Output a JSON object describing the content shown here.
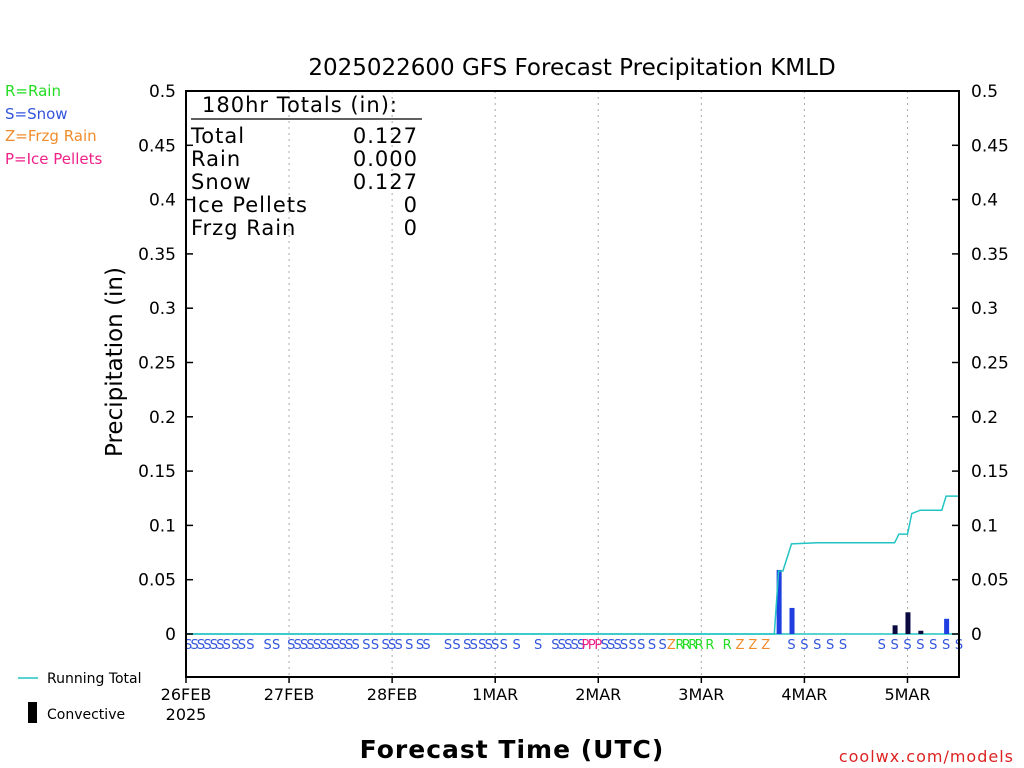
{
  "page": {
    "footer": "coolwx.com/models"
  },
  "legend": {
    "types": [
      {
        "label": "R=Rain",
        "color": "#22dd22"
      },
      {
        "label": "S=Snow",
        "color": "#3355dd"
      },
      {
        "label": "Z=Frzg Rain",
        "color": "#f08c2c"
      },
      {
        "label": "P=Ice Pellets",
        "color": "#ee2288"
      }
    ],
    "running_total": "Running Total",
    "convective": "Convective"
  },
  "totals": {
    "heading": "180hr Totals (in):",
    "rows": [
      {
        "label": "Total",
        "value": "0.127"
      },
      {
        "label": "Rain",
        "value": "0.000"
      },
      {
        "label": "Snow",
        "value": "0.127"
      },
      {
        "label": "Ice Pellets",
        "value": "0"
      },
      {
        "label": "Frzg Rain",
        "value": "0"
      }
    ]
  },
  "colors": {
    "running_total": "#22c4c4",
    "snow_bar": "#1f3fe0",
    "convective_bar": "#0a0a40",
    "grid": "#aaaaaa"
  },
  "chart_data": {
    "type": "bar",
    "title": "2025022600 GFS Forecast Precipitation KMLD",
    "xlabel": "Forecast Time (UTC)",
    "ylabel": "Precipitation (in)",
    "ylim": [
      0,
      0.5
    ],
    "xlim_hours": [
      0,
      180
    ],
    "y_ticks": [
      "0",
      "0.05",
      "0.1",
      "0.15",
      "0.2",
      "0.25",
      "0.3",
      "0.35",
      "0.4",
      "0.45",
      "0.5"
    ],
    "x_ticks": [
      {
        "hour": 0,
        "label": "26FEB",
        "sublabel": "2025"
      },
      {
        "hour": 24,
        "label": "27FEB"
      },
      {
        "hour": 48,
        "label": "28FEB"
      },
      {
        "hour": 72,
        "label": "1MAR"
      },
      {
        "hour": 96,
        "label": "2MAR"
      },
      {
        "hour": 120,
        "label": "3MAR"
      },
      {
        "hour": 144,
        "label": "4MAR"
      },
      {
        "hour": 168,
        "label": "5MAR"
      }
    ],
    "grid": true,
    "series": [
      {
        "name": "Running Total",
        "type": "line",
        "points": [
          [
            0,
            0
          ],
          [
            137,
            0
          ],
          [
            138,
            0.058
          ],
          [
            139,
            0.058
          ],
          [
            141,
            0.083
          ],
          [
            147,
            0.084
          ],
          [
            165,
            0.084
          ],
          [
            166,
            0.092
          ],
          [
            168,
            0.092
          ],
          [
            169,
            0.111
          ],
          [
            171,
            0.114
          ],
          [
            176,
            0.114
          ],
          [
            177,
            0.127
          ],
          [
            180,
            0.127
          ]
        ]
      },
      {
        "name": "Precipitation",
        "type": "bar",
        "bars": [
          {
            "hour": 138,
            "value": 0.059
          },
          {
            "hour": 141,
            "value": 0.024
          },
          {
            "hour": 177,
            "value": 0.014
          }
        ]
      },
      {
        "name": "Convective",
        "type": "bar",
        "bars": [
          {
            "hour": 165,
            "value": 0.008
          },
          {
            "hour": 168,
            "value": 0.02
          },
          {
            "hour": 171,
            "value": 0.003
          }
        ]
      }
    ],
    "type_markers": [
      {
        "hour": 0.5,
        "t": "S"
      },
      {
        "hour": 2,
        "t": "S"
      },
      {
        "hour": 3.5,
        "t": "S"
      },
      {
        "hour": 5,
        "t": "S"
      },
      {
        "hour": 6.5,
        "t": "S"
      },
      {
        "hour": 8,
        "t": "S"
      },
      {
        "hour": 9.5,
        "t": "S"
      },
      {
        "hour": 11.5,
        "t": "S"
      },
      {
        "hour": 13,
        "t": "S"
      },
      {
        "hour": 15,
        "t": "S"
      },
      {
        "hour": 19,
        "t": "S"
      },
      {
        "hour": 21,
        "t": "S"
      },
      {
        "hour": 24.5,
        "t": "S"
      },
      {
        "hour": 26,
        "t": "S"
      },
      {
        "hour": 27.5,
        "t": "S"
      },
      {
        "hour": 29,
        "t": "S"
      },
      {
        "hour": 30.5,
        "t": "S"
      },
      {
        "hour": 32,
        "t": "S"
      },
      {
        "hour": 33.5,
        "t": "S"
      },
      {
        "hour": 35,
        "t": "S"
      },
      {
        "hour": 36.5,
        "t": "S"
      },
      {
        "hour": 38,
        "t": "S"
      },
      {
        "hour": 39.5,
        "t": "S"
      },
      {
        "hour": 42,
        "t": "S"
      },
      {
        "hour": 44,
        "t": "S"
      },
      {
        "hour": 46.5,
        "t": "S"
      },
      {
        "hour": 48,
        "t": "S"
      },
      {
        "hour": 49.5,
        "t": "S"
      },
      {
        "hour": 52,
        "t": "S"
      },
      {
        "hour": 54.5,
        "t": "S"
      },
      {
        "hour": 56,
        "t": "S"
      },
      {
        "hour": 61,
        "t": "S"
      },
      {
        "hour": 63,
        "t": "S"
      },
      {
        "hour": 65.5,
        "t": "S"
      },
      {
        "hour": 67,
        "t": "S"
      },
      {
        "hour": 69,
        "t": "S"
      },
      {
        "hour": 70.5,
        "t": "S"
      },
      {
        "hour": 72,
        "t": "S"
      },
      {
        "hour": 74,
        "t": "S"
      },
      {
        "hour": 77,
        "t": "S"
      },
      {
        "hour": 82,
        "t": "S"
      },
      {
        "hour": 86,
        "t": "S"
      },
      {
        "hour": 87.5,
        "t": "S"
      },
      {
        "hour": 89,
        "t": "S"
      },
      {
        "hour": 90.5,
        "t": "S"
      },
      {
        "hour": 92,
        "t": "S"
      },
      {
        "hour": 93,
        "t": "P"
      },
      {
        "hour": 94.5,
        "t": "P"
      },
      {
        "hour": 96,
        "t": "P"
      },
      {
        "hour": 97.5,
        "t": "S"
      },
      {
        "hour": 99,
        "t": "S"
      },
      {
        "hour": 100.5,
        "t": "S"
      },
      {
        "hour": 102,
        "t": "S"
      },
      {
        "hour": 104,
        "t": "S"
      },
      {
        "hour": 106,
        "t": "S"
      },
      {
        "hour": 108.5,
        "t": "S"
      },
      {
        "hour": 111,
        "t": "S"
      },
      {
        "hour": 113,
        "t": "Z"
      },
      {
        "hour": 115,
        "t": "R"
      },
      {
        "hour": 116.5,
        "t": "R"
      },
      {
        "hour": 118,
        "t": "R"
      },
      {
        "hour": 119.5,
        "t": "R"
      },
      {
        "hour": 122,
        "t": "R"
      },
      {
        "hour": 126,
        "t": "R"
      },
      {
        "hour": 129,
        "t": "Z"
      },
      {
        "hour": 132,
        "t": "Z"
      },
      {
        "hour": 135,
        "t": "Z"
      },
      {
        "hour": 141,
        "t": "S"
      },
      {
        "hour": 144,
        "t": "S"
      },
      {
        "hour": 147,
        "t": "S"
      },
      {
        "hour": 150,
        "t": "S"
      },
      {
        "hour": 153,
        "t": "S"
      },
      {
        "hour": 162,
        "t": "S"
      },
      {
        "hour": 165,
        "t": "S"
      },
      {
        "hour": 168,
        "t": "S"
      },
      {
        "hour": 171,
        "t": "S"
      },
      {
        "hour": 174,
        "t": "S"
      },
      {
        "hour": 177,
        "t": "S"
      },
      {
        "hour": 180,
        "t": "S"
      }
    ]
  }
}
